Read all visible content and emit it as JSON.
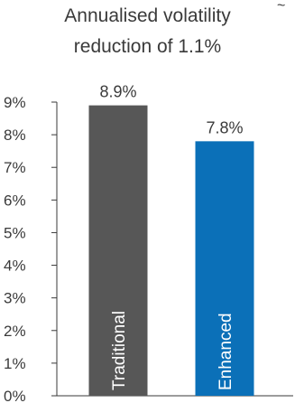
{
  "chart_data": {
    "type": "bar",
    "title_line1": "Annualised volatility",
    "title_line2": "reduction of 1.1%",
    "title_mark": "~",
    "categories": [
      "Traditional",
      "Enhanced"
    ],
    "values": [
      8.9,
      7.8
    ],
    "data_labels": [
      "8.9%",
      "7.8%"
    ],
    "colors": [
      "#575757",
      "#0b70b8"
    ],
    "ylim": [
      0,
      9
    ],
    "yticks": [
      {
        "value": 0,
        "label": "0%"
      },
      {
        "value": 1,
        "label": "1%"
      },
      {
        "value": 2,
        "label": "2%"
      },
      {
        "value": 3,
        "label": "3%"
      },
      {
        "value": 4,
        "label": "4%"
      },
      {
        "value": 5,
        "label": "5%"
      },
      {
        "value": 6,
        "label": "6%"
      },
      {
        "value": 7,
        "label": "7%"
      },
      {
        "value": 8,
        "label": "8%"
      },
      {
        "value": 9,
        "label": "9%"
      }
    ],
    "grid": false,
    "legend": "none"
  }
}
